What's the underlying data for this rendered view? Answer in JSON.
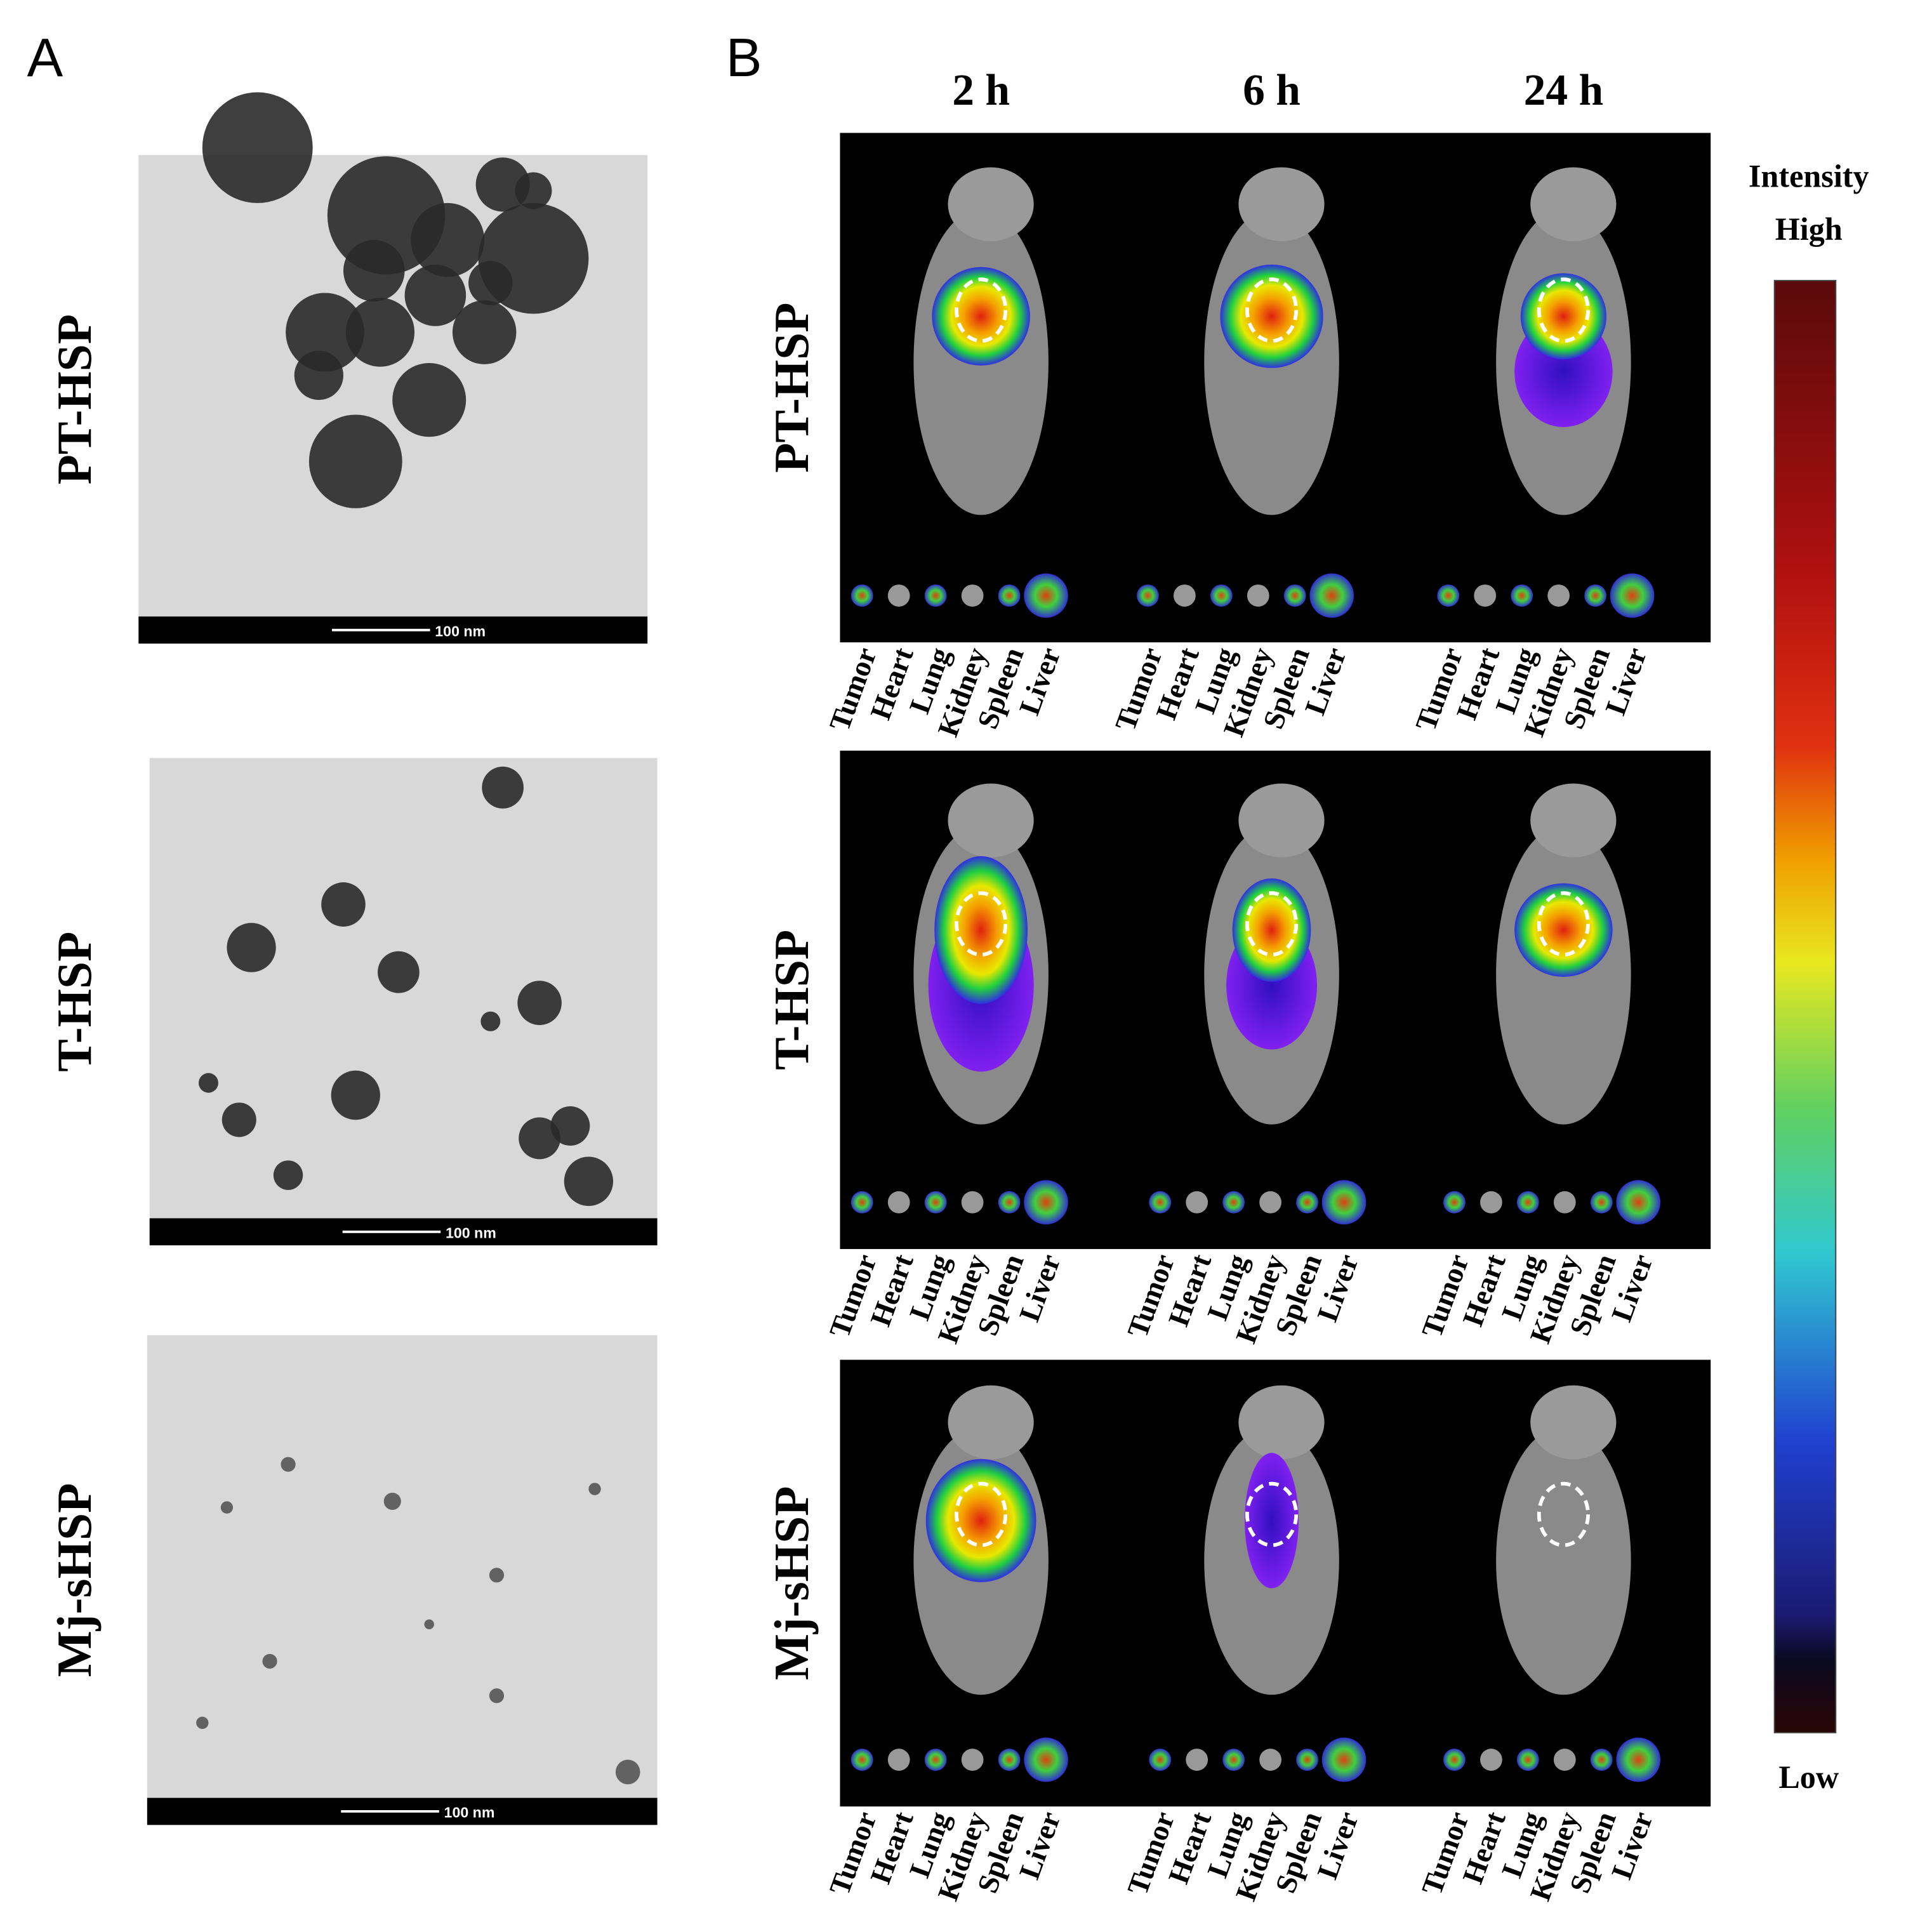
{
  "panel_a": {
    "label": "A",
    "rows": [
      {
        "label": "PT-HSP",
        "scale_bar": "100 nm"
      },
      {
        "label": "T-HSP",
        "scale_bar": "100 nm"
      },
      {
        "label": "Mj-sHSP",
        "scale_bar": "100 nm"
      }
    ]
  },
  "panel_b": {
    "label": "B",
    "times": [
      "2 h",
      "6 h",
      "24 h"
    ],
    "rows": [
      {
        "label": "PT-HSP"
      },
      {
        "label": "T-HSP"
      },
      {
        "label": "Mj-sHSP"
      }
    ],
    "organs": [
      "Tumor",
      "Heart",
      "Lung",
      "Kidney",
      "Spleen",
      "Liver"
    ],
    "colorbar": {
      "title": "Intensity",
      "high": "High",
      "low": "Low"
    }
  }
}
